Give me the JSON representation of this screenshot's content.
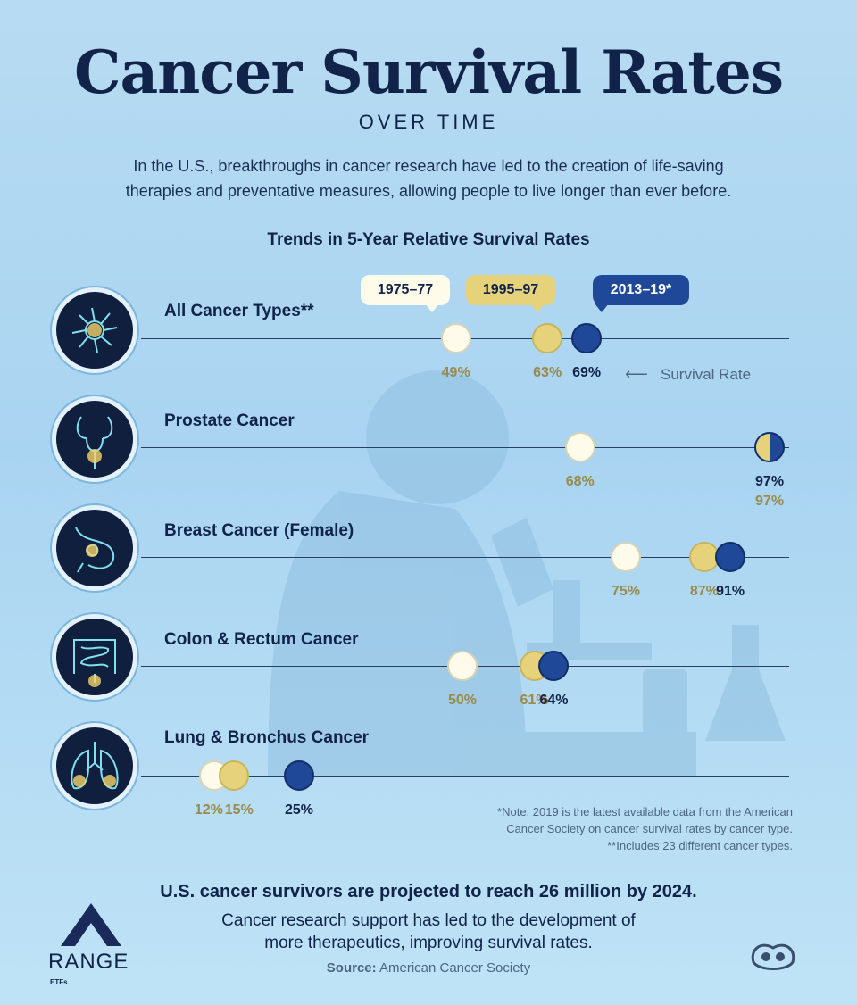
{
  "header": {
    "title": "Cancer Survival Rates",
    "subtitle": "OVER TIME",
    "intro_line1": "In the U.S., breakthroughs in cancer research have led to the creation of life-saving",
    "intro_line2": "therapies and preventative measures, allowing people to live longer than ever before."
  },
  "chart_data": {
    "type": "scatter",
    "title": "Trends in 5-Year Relative Survival Rates",
    "series": [
      {
        "name": "1975–77",
        "color": "#fffbea"
      },
      {
        "name": "1995–97",
        "color": "#e6d27a"
      },
      {
        "name": "2013–19*",
        "color": "#1f4898"
      }
    ],
    "categories": [
      "All Cancer Types**",
      "Prostate Cancer",
      "Breast Cancer (Female)",
      "Colon & Rectum Cancer",
      "Lung & Bronchus Cancer"
    ],
    "values": [
      [
        49,
        63,
        69
      ],
      [
        68,
        97,
        97
      ],
      [
        75,
        87,
        91
      ],
      [
        50,
        61,
        64
      ],
      [
        12,
        15,
        25
      ]
    ],
    "value_labels": [
      [
        "49%",
        "63%",
        "69%"
      ],
      [
        "68%",
        "97%",
        "97%"
      ],
      [
        "75%",
        "87%",
        "91%"
      ],
      [
        "50%",
        "61%",
        "64%"
      ],
      [
        "12%",
        "15%",
        "25%"
      ]
    ],
    "annotation": "Survival Rate",
    "xlim": [
      0,
      100
    ]
  },
  "notes": {
    "line1": "*Note: 2019 is the latest available data from the American",
    "line2": "Cancer Society on cancer survival rates by cancer type.",
    "line3": "**Includes 23 different cancer types."
  },
  "footer": {
    "headline": "U.S. cancer survivors are projected to reach 26 million by 2024.",
    "body_line1": "Cancer research support has led to the development of",
    "body_line2": "more therapeutics, improving survival rates.",
    "source_label": "Source:",
    "source_value": "American Cancer Society",
    "brand": "RANGE",
    "brand_sub": "ETFs"
  }
}
